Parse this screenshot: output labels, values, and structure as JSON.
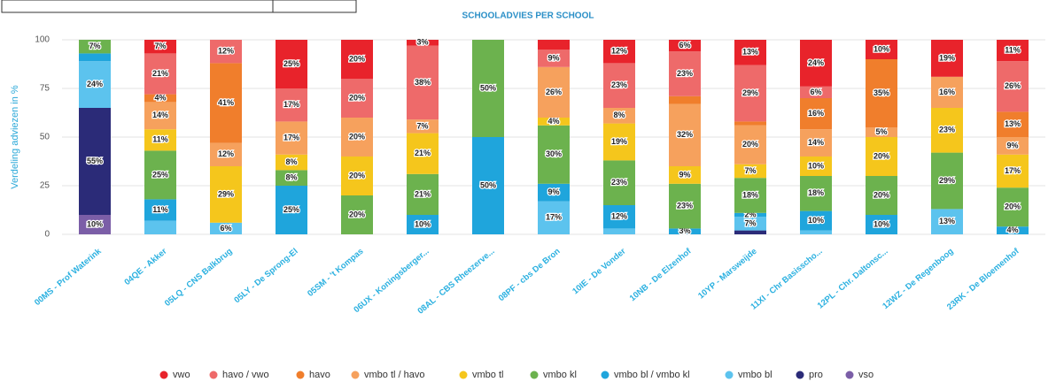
{
  "chart_data": {
    "type": "stacked_bar",
    "title": "SCHOOLADVIES PER SCHOOL",
    "y_label": "Verdeling adviezen in %",
    "categories": [
      "00MS - Prof Waterink",
      "04QE - Akker",
      "05LQ - CNS Balkbrug",
      "05LY - De Sprong-El",
      "05SM - 't Kompas",
      "06UX - Koningsberger...",
      "08AL - CBS Rheezerve...",
      "08PF - cbs De Bron",
      "10IE - De Vonder",
      "10NB - De Elzenhof",
      "10YP - Marsweijde",
      "11XI - Chr Basisscho...",
      "12PL - Chr. Daltonsc...",
      "12WZ - De Regenboog",
      "23RK - De Bloemenhof"
    ],
    "ylim": [
      0,
      100
    ],
    "yticks": [
      0,
      25,
      50,
      75,
      100
    ],
    "grid": true,
    "legend": "bottom",
    "series": [
      {
        "name": "vso",
        "color": "#7b5ea7",
        "values": [
          10,
          0,
          0,
          0,
          0,
          0,
          0,
          0,
          0,
          0,
          0,
          0,
          0,
          0,
          0
        ],
        "value_labels": [
          "10%",
          null,
          null,
          null,
          null,
          null,
          null,
          null,
          null,
          null,
          null,
          null,
          null,
          null,
          null
        ]
      },
      {
        "name": "pro",
        "color": "#2b2b78",
        "values": [
          55,
          0,
          0,
          0,
          0,
          0,
          0,
          0,
          0,
          0,
          2,
          0,
          0,
          0,
          0
        ],
        "value_labels": [
          "55%",
          null,
          null,
          null,
          null,
          null,
          null,
          null,
          null,
          null,
          null,
          null,
          null,
          null,
          null
        ]
      },
      {
        "name": "vmbo bl",
        "color": "#5cc3ee",
        "values": [
          24,
          7,
          6,
          0,
          0,
          0,
          0,
          17,
          3,
          0,
          7,
          2,
          0,
          13,
          0
        ],
        "value_labels": [
          "24%",
          null,
          "6%",
          null,
          null,
          null,
          null,
          "17%",
          null,
          null,
          "7%",
          null,
          null,
          "13%",
          null
        ]
      },
      {
        "name": "vmbo bl / vmbo kl",
        "color": "#1fa5dc",
        "values": [
          4,
          11,
          0,
          25,
          0,
          10,
          50,
          9,
          12,
          3,
          2,
          10,
          10,
          0,
          4
        ],
        "value_labels": [
          null,
          "11%",
          null,
          "25%",
          null,
          "10%",
          "50%",
          "9%",
          "12%",
          "3%",
          "2%",
          "10%",
          "10%",
          null,
          "4%"
        ]
      },
      {
        "name": "vmbo kl",
        "color": "#6cb24e",
        "values": [
          7,
          25,
          0,
          8,
          20,
          21,
          50,
          30,
          23,
          23,
          18,
          18,
          20,
          29,
          20
        ],
        "value_labels": [
          "7%",
          "25%",
          null,
          "8%",
          "20%",
          "21%",
          "50%",
          "30%",
          "23%",
          "23%",
          "18%",
          "18%",
          "20%",
          "29%",
          "20%"
        ]
      },
      {
        "name": "vmbo tl",
        "color": "#f5c61c",
        "values": [
          0,
          11,
          29,
          8,
          20,
          21,
          0,
          4,
          19,
          9,
          7,
          10,
          20,
          23,
          17
        ],
        "value_labels": [
          null,
          "11%",
          "29%",
          "8%",
          "20%",
          "21%",
          null,
          "4%",
          "19%",
          "9%",
          "7%",
          "10%",
          "20%",
          "23%",
          "17%"
        ]
      },
      {
        "name": "vmbo tl / havo",
        "color": "#f6a15d",
        "values": [
          0,
          14,
          12,
          17,
          20,
          7,
          0,
          26,
          8,
          32,
          20,
          14,
          5,
          16,
          9
        ],
        "value_labels": [
          null,
          "14%",
          "12%",
          "17%",
          "20%",
          "7%",
          null,
          "26%",
          "8%",
          "32%",
          "20%",
          "14%",
          "5%",
          "16%",
          "9%"
        ]
      },
      {
        "name": "havo",
        "color": "#f07e2c",
        "values": [
          0,
          4,
          41,
          0,
          0,
          0,
          0,
          0,
          0,
          4,
          2,
          16,
          35,
          0,
          13
        ],
        "value_labels": [
          null,
          "4%",
          "41%",
          null,
          null,
          null,
          null,
          null,
          null,
          null,
          null,
          "16%",
          "35%",
          null,
          "13%"
        ]
      },
      {
        "name": "havo / vwo",
        "color": "#ee6a6a",
        "values": [
          0,
          21,
          12,
          17,
          20,
          38,
          0,
          9,
          23,
          23,
          29,
          6,
          0,
          0,
          26
        ],
        "value_labels": [
          null,
          "21%",
          "12%",
          "17%",
          "20%",
          "38%",
          null,
          "9%",
          "23%",
          "23%",
          "29%",
          "6%",
          null,
          null,
          "26%"
        ]
      },
      {
        "name": "vwo",
        "color": "#e8232b",
        "values": [
          0,
          7,
          0,
          25,
          20,
          3,
          0,
          5,
          12,
          6,
          13,
          24,
          10,
          19,
          11
        ],
        "value_labels": [
          null,
          "7%",
          null,
          "25%",
          "20%",
          "3%",
          null,
          null,
          "12%",
          "6%",
          "13%",
          "24%",
          "10%",
          "19%",
          "11%"
        ]
      }
    ]
  }
}
